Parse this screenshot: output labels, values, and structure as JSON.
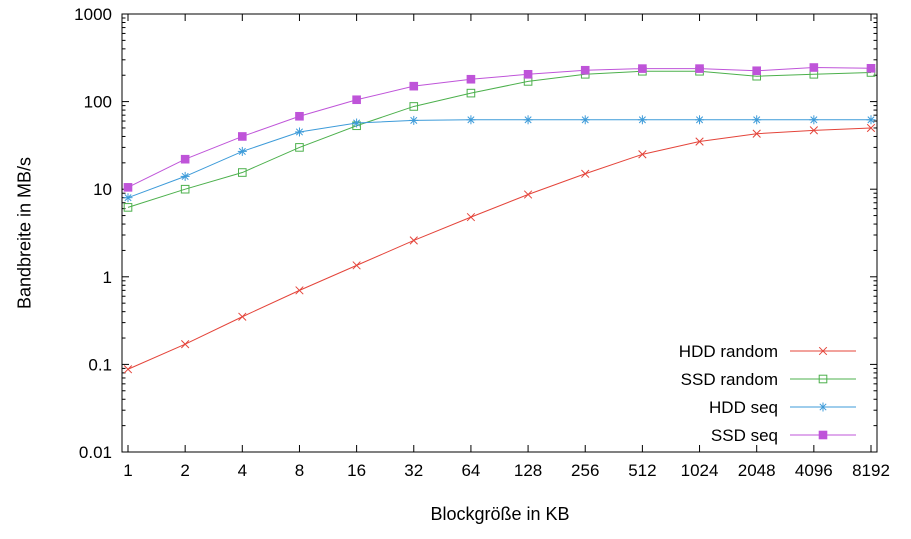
{
  "chart_data": {
    "type": "line",
    "title": "",
    "xlabel": "Blockgröße in KB",
    "ylabel": "Bandbreite in MB/s",
    "x_scale": "log2",
    "y_scale": "log10",
    "ylim": [
      0.01,
      1000
    ],
    "x_ticks": [
      "1",
      "2",
      "4",
      "8",
      "16",
      "32",
      "64",
      "128",
      "256",
      "512",
      "1024",
      "2048",
      "4096",
      "8192"
    ],
    "y_ticks": [
      "0.01",
      "0.1",
      "1",
      "10",
      "100",
      "1000"
    ],
    "grid": false,
    "legend_position": "bottom-right-inside",
    "categories": [
      1,
      2,
      4,
      8,
      16,
      32,
      64,
      128,
      256,
      512,
      1024,
      2048,
      4096,
      8192
    ],
    "series": [
      {
        "name": "HDD random",
        "color": "#e4443a",
        "marker": "cross",
        "values": [
          0.088,
          0.17,
          0.35,
          0.7,
          1.35,
          2.6,
          4.8,
          8.7,
          15,
          25,
          35,
          43,
          47,
          50
        ]
      },
      {
        "name": "SSD random",
        "color": "#4cb04c",
        "marker": "open-square",
        "values": [
          6.2,
          10,
          15.5,
          30,
          53,
          88,
          125,
          170,
          205,
          222,
          222,
          195,
          205,
          215
        ]
      },
      {
        "name": "HDD seq",
        "color": "#3d9bd9",
        "marker": "asterisk",
        "values": [
          8,
          14,
          27,
          45,
          57,
          61,
          62,
          62,
          62,
          62,
          62,
          62,
          62,
          62
        ]
      },
      {
        "name": "SSD seq",
        "color": "#bf54d9",
        "marker": "filled-square",
        "values": [
          10.5,
          22,
          40,
          68,
          105,
          150,
          180,
          205,
          228,
          238,
          238,
          225,
          245,
          240
        ]
      }
    ]
  }
}
